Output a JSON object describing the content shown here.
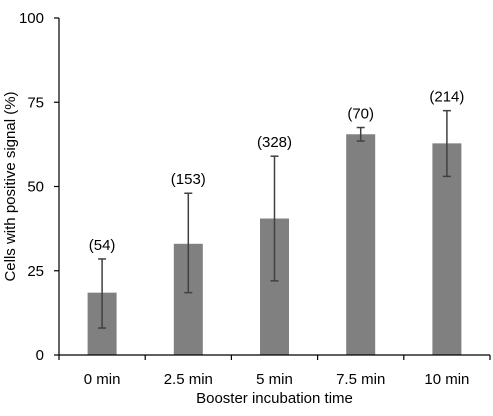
{
  "chart_data": {
    "type": "bar",
    "title": "",
    "xlabel": "Booster incubation time",
    "ylabel": "Cells with positive signal (%)",
    "ylim": [
      0,
      100
    ],
    "yticks": [
      0,
      25,
      50,
      75,
      100
    ],
    "grid": false,
    "categories": [
      "0 min",
      "2.5 min",
      "5 min",
      "7.5 min",
      "10 min"
    ],
    "values": [
      18.5,
      33,
      40.5,
      65.5,
      62.8
    ],
    "error_low": [
      8,
      18.5,
      22,
      63.5,
      53
    ],
    "error_high": [
      28.5,
      48,
      59,
      67.5,
      72.5
    ],
    "annotations": [
      "(54)",
      "(153)",
      "(328)",
      "(70)",
      "(214)"
    ],
    "bar_color": "#808080",
    "error_color": "#404040",
    "axis_color": "#000000"
  }
}
